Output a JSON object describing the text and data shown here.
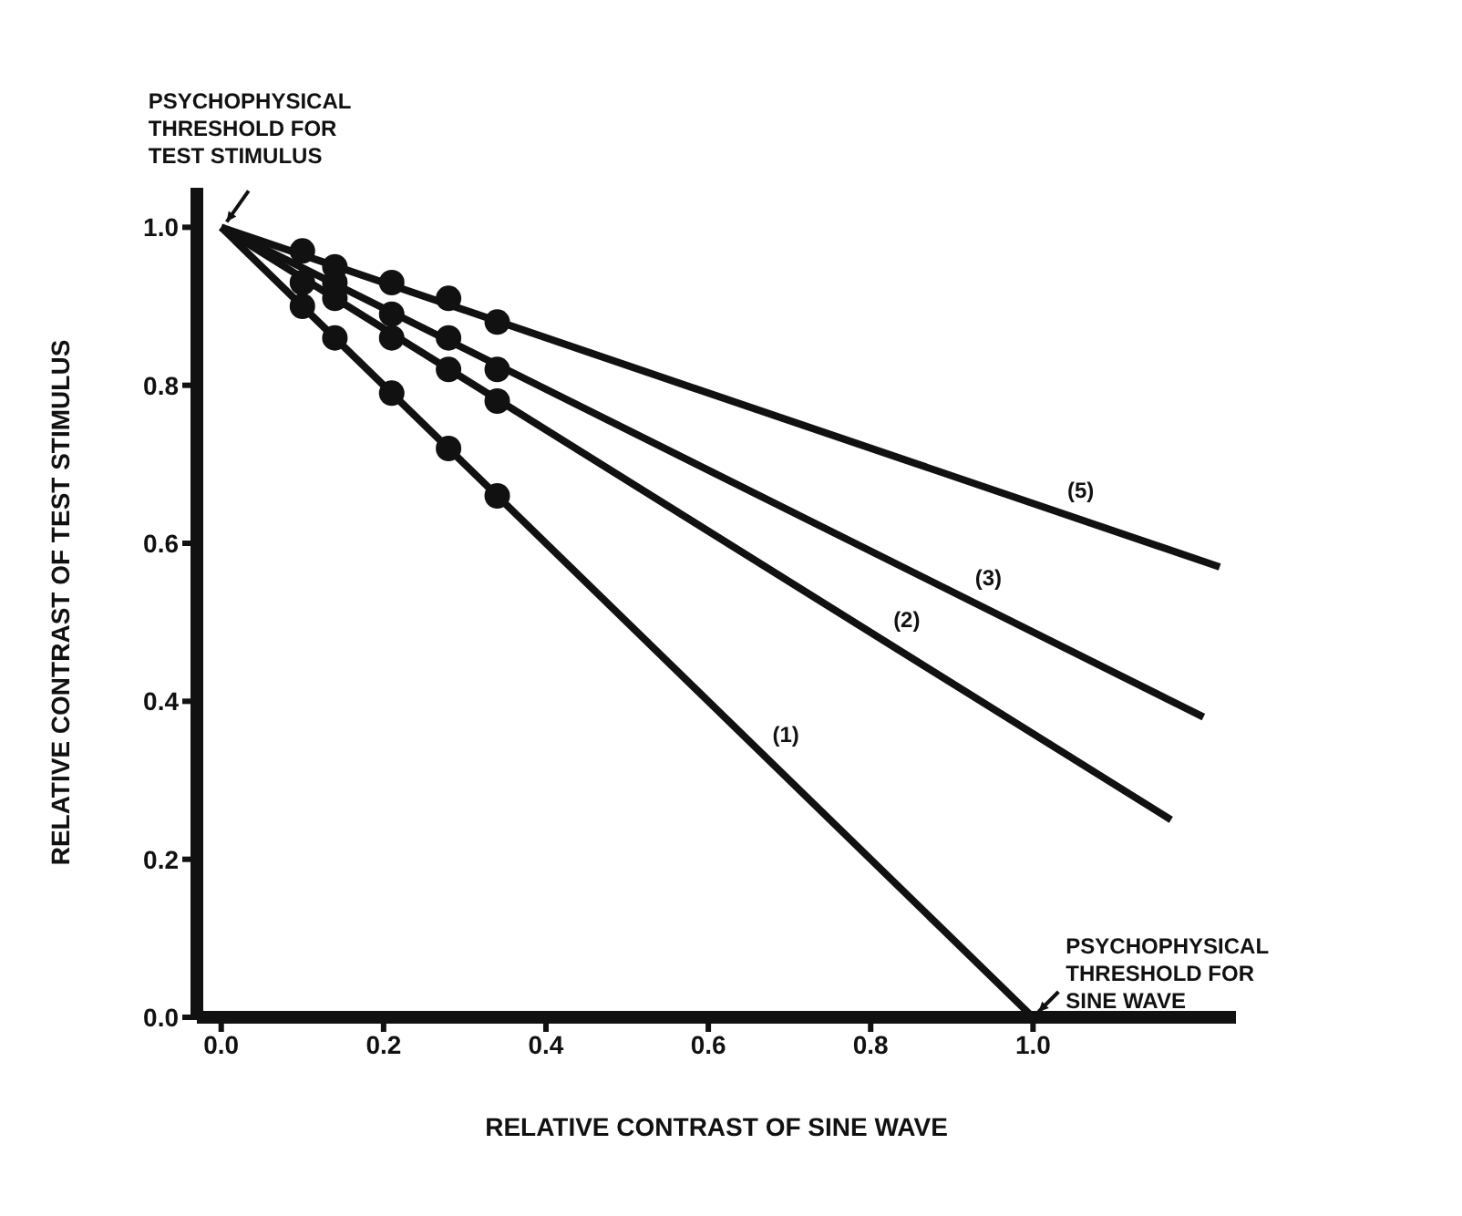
{
  "chart_data": {
    "type": "line",
    "xlabel": "RELATIVE CONTRAST OF SINE WAVE",
    "ylabel": "RELATIVE CONTRAST OF TEST STIMULUS",
    "xlim": [
      -0.03,
      1.25
    ],
    "ylim": [
      0,
      1.05
    ],
    "xticks": [
      {
        "value": 0,
        "label": "0.0"
      },
      {
        "value": 0.2,
        "label": "0.2"
      },
      {
        "value": 0.4,
        "label": "0.4"
      },
      {
        "value": 0.6,
        "label": "0.6"
      },
      {
        "value": 0.8,
        "label": "0.8"
      },
      {
        "value": 1,
        "label": "1.0"
      }
    ],
    "yticks": [
      {
        "value": 0,
        "label": "0.0"
      },
      {
        "value": 0.2,
        "label": "0.2"
      },
      {
        "value": 0.4,
        "label": "0.4"
      },
      {
        "value": 0.6,
        "label": "0.6"
      },
      {
        "value": 0.8,
        "label": "0.8"
      },
      {
        "value": 1,
        "label": "1.0"
      }
    ],
    "grid": false,
    "series": [
      {
        "name": "(1)",
        "marker": "none",
        "color": "#111111",
        "x": [
          0,
          1
        ],
        "values": [
          1,
          0
        ]
      },
      {
        "name": "(2)",
        "marker": "none",
        "color": "#111111",
        "x": [
          0,
          1.17
        ],
        "values": [
          1,
          0.25
        ]
      },
      {
        "name": "(3)",
        "marker": "none",
        "color": "#111111",
        "x": [
          0,
          1.21
        ],
        "values": [
          1,
          0.38
        ]
      },
      {
        "name": "(5)",
        "marker": "none",
        "color": "#111111",
        "x": [
          0,
          1.23
        ],
        "values": [
          1,
          0.57
        ]
      },
      {
        "type": "scatter",
        "marker": "circle",
        "color": "#111111",
        "x": [
          0.1,
          0.14,
          0.21,
          0.28,
          0.34
        ],
        "values": [
          0.9,
          0.86,
          0.79,
          0.72,
          0.66
        ]
      },
      {
        "type": "scatter",
        "marker": "circle",
        "color": "#111111",
        "x": [
          0.1,
          0.14,
          0.21,
          0.28,
          0.34
        ],
        "values": [
          0.93,
          0.91,
          0.86,
          0.82,
          0.78
        ]
      },
      {
        "type": "scatter",
        "marker": "circle",
        "color": "#111111",
        "x": [
          0.14,
          0.21,
          0.28,
          0.34
        ],
        "values": [
          0.93,
          0.89,
          0.86,
          0.82
        ]
      },
      {
        "type": "scatter",
        "marker": "circle",
        "color": "#111111",
        "x": [
          0.1,
          0.14,
          0.21,
          0.28,
          0.34
        ],
        "values": [
          0.97,
          0.95,
          0.93,
          0.91,
          0.88
        ]
      }
    ],
    "annotations": [
      {
        "text": "PSYCHOPHYSICAL THRESHOLD FOR TEST STIMULUS",
        "x": 0,
        "y": 1
      },
      {
        "text": "PSYCHOPHYSICAL THRESHOLD FOR SINE WAVE",
        "x": 1,
        "y": 0
      }
    ]
  }
}
